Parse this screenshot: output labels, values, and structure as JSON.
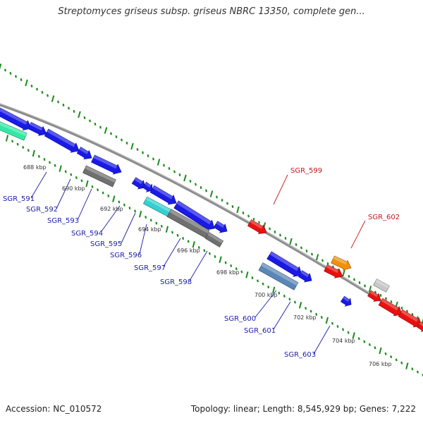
{
  "title": "Streptomyces griseus subsp. griseus NBRC 13350, complete gen...",
  "footer": {
    "accession": "Accession: NC_010572",
    "summary": "Topology: linear; Length: 8,545,929 bp; Genes: 7,222"
  },
  "colors": {
    "forward_blue": "#1a1ae6",
    "red": "#e81010",
    "gray": "#707070",
    "steel_blue": "#5a86b8",
    "cyan": "#34d0d0",
    "teal_green": "#33e8a6",
    "orange": "#f0900c",
    "light_gray": "#c8c8c8",
    "tick_green": "#1a8a1a",
    "backbone": "#8c8c8c"
  },
  "kbp_labels": [
    "688 kbp",
    "690 kbp",
    "692 kbp",
    "694 kbp",
    "696 kbp",
    "698 kbp",
    "700 kbp",
    "702 kbp",
    "704 kbp",
    "706 kbp"
  ],
  "gene_labels": [
    "SGR_591",
    "SGR_592",
    "SGR_593",
    "SGR_594",
    "SGR_595",
    "SGR_596",
    "SGR_597",
    "SGR_598",
    "SGR_599",
    "SGR_600",
    "SGR_601",
    "SGR_602",
    "SGR_603"
  ]
}
